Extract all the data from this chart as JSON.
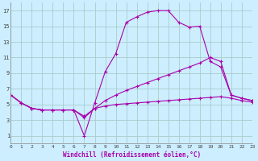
{
  "xlabel": "Windchill (Refroidissement éolien,°C)",
  "bg_color": "#cceeff",
  "line_color": "#aa00aa",
  "grid_color": "#aacccc",
  "xlim": [
    0,
    23
  ],
  "ylim": [
    0,
    18
  ],
  "xticks": [
    0,
    1,
    2,
    3,
    4,
    5,
    6,
    7,
    8,
    9,
    10,
    11,
    12,
    13,
    14,
    15,
    16,
    17,
    18,
    19,
    20,
    21,
    22,
    23
  ],
  "yticks": [
    1,
    3,
    5,
    7,
    9,
    11,
    13,
    15,
    17
  ],
  "line1_x": [
    0,
    1,
    2,
    3,
    4,
    5,
    6,
    7,
    8,
    9,
    10,
    11,
    12,
    13,
    14,
    15,
    16,
    17,
    18,
    19,
    20,
    21,
    22,
    23
  ],
  "line1_y": [
    6.2,
    5.2,
    4.5,
    4.3,
    4.3,
    4.3,
    4.3,
    1.0,
    5.2,
    9.2,
    11.5,
    15.5,
    16.2,
    16.8,
    17.0,
    17.0,
    15.5,
    14.9,
    15.0,
    10.5,
    9.8,
    6.2,
    5.8,
    5.5
  ],
  "line2_x": [
    0,
    1,
    2,
    3,
    4,
    5,
    6,
    7,
    8,
    9,
    10,
    11,
    12,
    13,
    14,
    15,
    16,
    17,
    18,
    19,
    20,
    21,
    22,
    23
  ],
  "line2_y": [
    6.2,
    5.2,
    4.5,
    4.3,
    4.3,
    4.3,
    4.3,
    3.3,
    4.5,
    4.8,
    5.0,
    5.1,
    5.2,
    5.3,
    5.4,
    5.5,
    5.6,
    5.7,
    5.8,
    5.9,
    6.0,
    5.8,
    5.5,
    5.3
  ],
  "line3_x": [
    0,
    1,
    2,
    3,
    4,
    5,
    6,
    7,
    8,
    9,
    10,
    11,
    12,
    13,
    14,
    15,
    16,
    17,
    18,
    19,
    20,
    21,
    22,
    23
  ],
  "line3_y": [
    6.2,
    5.2,
    4.5,
    4.3,
    4.3,
    4.3,
    4.3,
    3.5,
    4.5,
    5.5,
    6.2,
    6.8,
    7.3,
    7.8,
    8.3,
    8.8,
    9.3,
    9.8,
    10.3,
    11.0,
    10.5,
    6.2,
    5.8,
    5.5
  ]
}
